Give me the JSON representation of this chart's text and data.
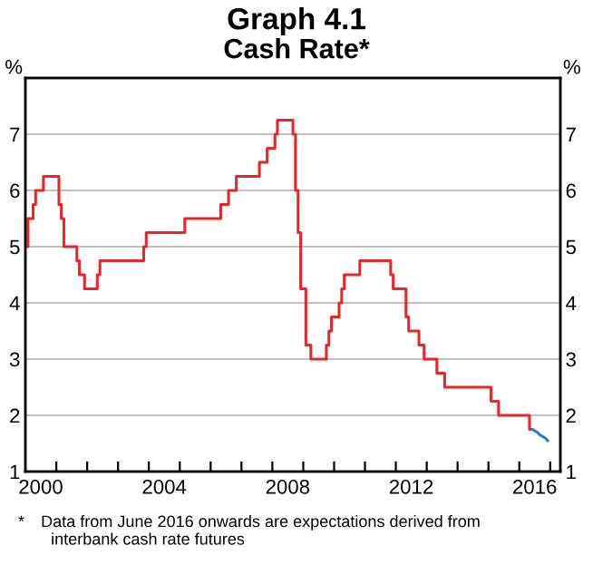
{
  "chart_data": {
    "type": "step",
    "title": "Graph 4.1",
    "subtitle": "Cash Rate*",
    "ylabel": "%",
    "y2label": "%",
    "series": [
      {
        "color": "#e8262a",
        "x": [
          "2000-01",
          "2000-02",
          "2000-04",
          "2000-05",
          "2000-08",
          "2001-02",
          "2001-03",
          "2001-04",
          "2001-09",
          "2001-10",
          "2001-12",
          "2002-05",
          "2002-06",
          "2003-11",
          "2003-12",
          "2005-03",
          "2006-05",
          "2006-08",
          "2006-11",
          "2007-08",
          "2007-11",
          "2008-02",
          "2008-03",
          "2008-09",
          "2008-10",
          "2008-11",
          "2008-12",
          "2009-02",
          "2009-04",
          "2009-10",
          "2009-11",
          "2009-12",
          "2010-03",
          "2010-04",
          "2010-05",
          "2010-11",
          "2011-11",
          "2011-12",
          "2012-05",
          "2012-06",
          "2012-10",
          "2012-12",
          "2013-05",
          "2013-08",
          "2015-02",
          "2015-05",
          "2016-05",
          "2016-06"
        ],
        "values": [
          5.0,
          5.5,
          5.75,
          6.0,
          6.25,
          5.75,
          5.5,
          5.0,
          4.75,
          4.5,
          4.25,
          4.5,
          4.75,
          5.0,
          5.25,
          5.5,
          5.75,
          6.0,
          6.25,
          6.5,
          6.75,
          7.0,
          7.25,
          7.0,
          6.0,
          5.25,
          4.25,
          3.25,
          3.0,
          3.25,
          3.5,
          3.75,
          4.0,
          4.25,
          4.5,
          4.75,
          4.5,
          4.25,
          3.75,
          3.5,
          3.25,
          3.0,
          2.75,
          2.5,
          2.25,
          2.0,
          1.75,
          1.75
        ]
      },
      {
        "type": "line",
        "color": "#2a7fc1",
        "x": [
          "2016-06",
          "2016-08",
          "2016-09",
          "2016-11",
          "2016-12"
        ],
        "values": [
          1.75,
          1.7,
          1.65,
          1.6,
          1.55
        ]
      }
    ],
    "xlim": [
      "2000-01",
      "2017-05"
    ],
    "xticks": [
      {
        "value": "2001-01",
        "label": null
      },
      {
        "value": "2002-01",
        "label": null
      },
      {
        "value": "2003-01",
        "label": null
      },
      {
        "value": "2004-01",
        "label": null
      },
      {
        "value": "2005-01",
        "label": null
      },
      {
        "value": "2006-01",
        "label": null
      },
      {
        "value": "2007-01",
        "label": null
      },
      {
        "value": "2008-01",
        "label": null
      },
      {
        "value": "2009-01",
        "label": null
      },
      {
        "value": "2010-01",
        "label": null
      },
      {
        "value": "2011-01",
        "label": null
      },
      {
        "value": "2012-01",
        "label": null
      },
      {
        "value": "2013-01",
        "label": null
      },
      {
        "value": "2014-01",
        "label": null
      },
      {
        "value": "2015-01",
        "label": null
      },
      {
        "value": "2016-01",
        "label": null
      },
      {
        "value": "2017-01",
        "label": null
      },
      {
        "value": "2000-07",
        "label": "2000"
      },
      {
        "value": "2004-07",
        "label": "2004"
      },
      {
        "value": "2008-07",
        "label": "2008"
      },
      {
        "value": "2012-07",
        "label": "2012"
      },
      {
        "value": "2016-07",
        "label": "2016"
      }
    ],
    "ylim": [
      1,
      8
    ],
    "yticks": [
      1,
      2,
      3,
      4,
      5,
      6,
      7
    ],
    "y2lim": [
      1,
      8
    ],
    "y2ticks": [
      1,
      2,
      3,
      4,
      5,
      6,
      7
    ],
    "grid": "y",
    "legend": false,
    "annotations": [
      "* Data from June 2016 onwards are expectations derived from\n  interbank cash rate futures"
    ]
  }
}
